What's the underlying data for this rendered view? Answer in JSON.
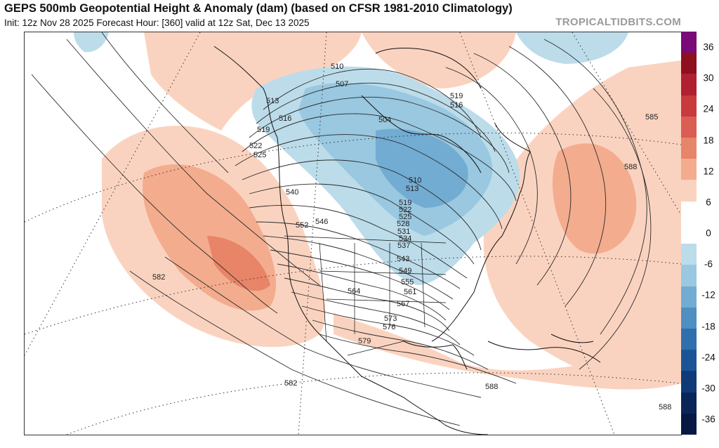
{
  "header": {
    "title": "GEPS 500mb Geopotential Height & Anomaly (dam) (based on CFSR 1981-2010 Climatology)",
    "subtitle": "Init: 12z Nov 28 2025   Forecast Hour: [360]   valid at 12z Sat, Dec 13 2025",
    "credit": "TROPICALTIDBITS.COM"
  },
  "colorbar": {
    "ticks": [
      "36",
      "30",
      "24",
      "18",
      "12",
      "6",
      "0",
      "-6",
      "-12",
      "-18",
      "-24",
      "-30",
      "-36"
    ],
    "colors": [
      "#7a0a78",
      "#8e1020",
      "#b02030",
      "#c83a3e",
      "#da5e54",
      "#e88468",
      "#f3ac8e",
      "#fad3c0",
      "#ffffff",
      "#ffffff",
      "#bcdcea",
      "#99c8e0",
      "#72acd2",
      "#4f8fc2",
      "#2f6fae",
      "#1a5496",
      "#0e3b78",
      "#0a2558",
      "#081845"
    ]
  },
  "map": {
    "contour_labels": [
      "510",
      "507",
      "513",
      "516",
      "519",
      "522",
      "525",
      "504",
      "519",
      "516",
      "510",
      "513",
      "519",
      "522",
      "525",
      "528",
      "531",
      "534",
      "537",
      "540",
      "543",
      "546",
      "549",
      "552",
      "555",
      "561",
      "564",
      "567",
      "573",
      "576",
      "579",
      "582",
      "582",
      "585",
      "588",
      "588",
      "588"
    ]
  }
}
